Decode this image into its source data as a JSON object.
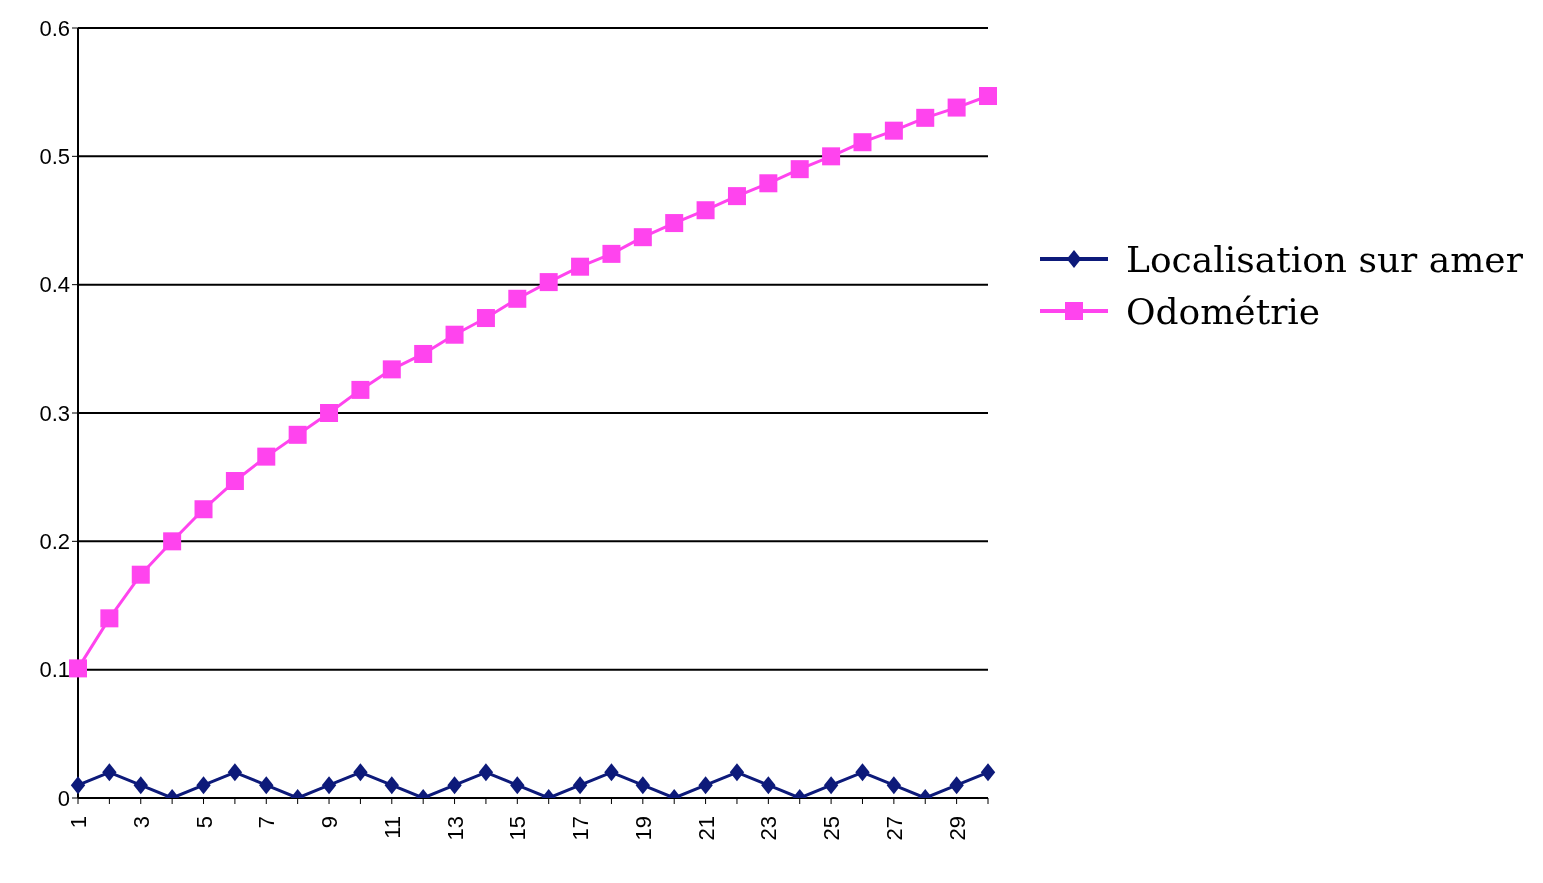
{
  "chart_data": {
    "type": "line",
    "categories": [
      "1",
      null,
      "3",
      null,
      "5",
      null,
      "7",
      null,
      "9",
      null,
      "11",
      null,
      "13",
      null,
      "15",
      null,
      "17",
      null,
      "19",
      null,
      "21",
      null,
      "23",
      null,
      "25",
      null,
      "27",
      null,
      "29",
      null
    ],
    "series": [
      {
        "name": "Localisation sur amer",
        "color": "#0d1a7a",
        "marker": "diamond",
        "values": [
          0.01,
          0.02,
          0.01,
          0,
          0.01,
          0.02,
          0.01,
          0,
          0.01,
          0.02,
          0.01,
          0,
          0.01,
          0.02,
          0.01,
          0,
          0.01,
          0.02,
          0.01,
          0,
          0.01,
          0.02,
          0.01,
          0,
          0.01,
          0.02,
          0.01,
          0,
          0.01,
          0.02
        ]
      },
      {
        "name": "Odométrie",
        "color": "#ff44ee",
        "marker": "square",
        "values": [
          0.101,
          0.14,
          0.174,
          0.2,
          0.225,
          0.247,
          0.266,
          0.283,
          0.3,
          0.318,
          0.334,
          0.346,
          0.361,
          0.374,
          0.389,
          0.402,
          0.414,
          0.424,
          0.437,
          0.448,
          0.458,
          0.469,
          0.479,
          0.49,
          0.5,
          0.511,
          0.52,
          0.53,
          0.538,
          0.547
        ]
      }
    ],
    "ylim": [
      0,
      0.6
    ],
    "yticks": [
      0,
      0.1,
      0.2,
      0.3,
      0.4,
      0.5,
      0.6
    ],
    "grid": "y",
    "legend": "right",
    "line_style": "solid"
  }
}
